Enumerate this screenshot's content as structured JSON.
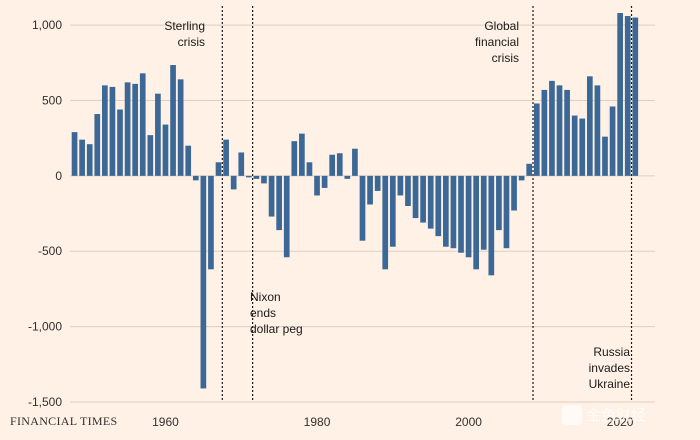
{
  "chart_data": {
    "type": "bar",
    "title": "",
    "xlabel": "",
    "ylabel": "",
    "x_start_year": 1948,
    "x_ticks": [
      1960,
      1980,
      2000,
      2020
    ],
    "x_tick_labels": [
      "1960",
      "1980",
      "2000",
      "2020"
    ],
    "x_range": [
      1947.4,
      2024.6
    ],
    "ylim": [
      -1500,
      1100
    ],
    "y_ticks": [
      1000,
      500,
      0,
      -500,
      -1000,
      -1500
    ],
    "y_tick_labels": [
      "1,000",
      "500",
      "0",
      "-500",
      "-1,000",
      "-1,500"
    ],
    "grid": true,
    "bar_color": "#3b6896",
    "values": [
      290,
      240,
      210,
      410,
      600,
      590,
      440,
      620,
      610,
      680,
      270,
      545,
      340,
      735,
      640,
      200,
      -30,
      -1410,
      -620,
      90,
      240,
      -90,
      155,
      -10,
      -20,
      -50,
      -270,
      -360,
      -540,
      230,
      280,
      90,
      -130,
      -80,
      140,
      150,
      -20,
      180,
      -430,
      -190,
      -100,
      -620,
      -470,
      -130,
      -200,
      -280,
      -310,
      -350,
      -400,
      -470,
      -480,
      -510,
      -540,
      -620,
      -490,
      -660,
      -360,
      -480,
      -230,
      -30,
      80,
      480,
      570,
      630,
      600,
      570,
      400,
      380,
      660,
      600,
      260,
      460,
      1080,
      1060,
      1050
    ],
    "annotations": [
      {
        "id": "sterling",
        "lines": [
          "Sterling",
          "crisis"
        ],
        "year": 1967.5
      },
      {
        "id": "nixon",
        "lines": [
          "Nixon",
          "ends",
          "dollar peg"
        ],
        "year": 1971.5
      },
      {
        "id": "gfc",
        "lines": [
          "Global",
          "financial",
          "crisis"
        ],
        "year": 2008.5
      },
      {
        "id": "russia",
        "lines": [
          "Russia",
          "invades",
          "Ukraine"
        ],
        "year": 2021.5
      }
    ]
  },
  "source_label": "FINANCIAL TIMES",
  "watermark_text": "金色财经"
}
